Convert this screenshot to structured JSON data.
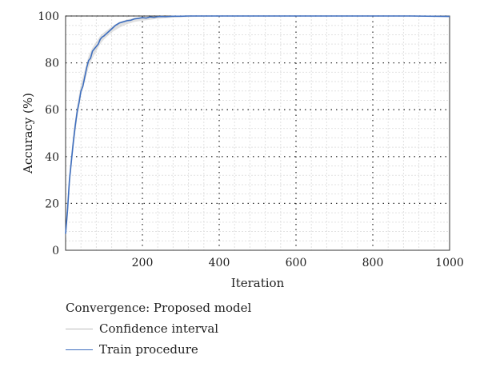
{
  "chart_data": {
    "type": "line",
    "title": "",
    "xlabel": "Iteration",
    "ylabel": "Accuracy (%)",
    "xlim": [
      0,
      1000
    ],
    "ylim": [
      0,
      100
    ],
    "xticks": [
      "200",
      "400",
      "600",
      "800",
      "1000"
    ],
    "yticks": [
      "0",
      "20",
      "40",
      "60",
      "80",
      "100"
    ],
    "grid": true,
    "legend_title": "Convergence: Proposed model",
    "legend_placement": "below",
    "series": [
      {
        "name": "Confidence interval",
        "color": "#bdbdbd",
        "x": [
          0,
          5,
          10,
          20,
          30,
          40,
          50,
          60,
          70,
          80,
          90,
          100,
          120,
          140,
          160,
          180,
          200,
          220,
          240,
          260,
          280,
          300,
          350,
          400,
          500,
          600,
          700,
          800,
          900,
          1000
        ],
        "y_low": [
          5,
          14,
          26,
          43,
          56,
          66,
          72,
          78,
          82,
          85,
          88,
          90,
          93,
          95,
          96.5,
          97.5,
          98,
          98.4,
          98.8,
          99.1,
          99.3,
          99.5,
          99.7,
          99.8,
          99.8,
          99.8,
          99.8,
          99.8,
          99.8,
          99.8
        ],
        "y_high": [
          9,
          20,
          33,
          50,
          62,
          71,
          77,
          83,
          86.5,
          89,
          91.5,
          93,
          95.5,
          97.5,
          98.5,
          99.2,
          99.6,
          99.8,
          99.9,
          100,
          100,
          100,
          100,
          100,
          100,
          100,
          100,
          100,
          100,
          100
        ]
      },
      {
        "name": "Train procedure",
        "color": "#3f6fbf",
        "x": [
          0,
          5,
          10,
          15,
          20,
          25,
          30,
          35,
          40,
          45,
          50,
          55,
          60,
          65,
          70,
          75,
          80,
          85,
          90,
          95,
          100,
          110,
          120,
          130,
          140,
          150,
          160,
          170,
          180,
          190,
          200,
          210,
          220,
          230,
          240,
          250,
          260,
          280,
          300,
          320,
          340,
          360,
          400,
          500,
          600,
          700,
          800,
          900,
          1000
        ],
        "y": [
          7,
          17,
          30,
          38,
          46,
          53,
          59,
          63,
          68,
          70,
          74,
          78,
          81,
          82,
          85,
          86,
          87,
          88,
          90,
          91,
          91.5,
          93,
          94.5,
          96,
          97,
          97.5,
          98,
          98.2,
          98.8,
          99,
          99.3,
          99.1,
          99.6,
          99.4,
          99.7,
          99.8,
          99.7,
          99.9,
          99.9,
          100,
          100,
          100,
          100,
          100,
          100,
          100,
          100,
          100,
          99.8
        ]
      }
    ]
  }
}
